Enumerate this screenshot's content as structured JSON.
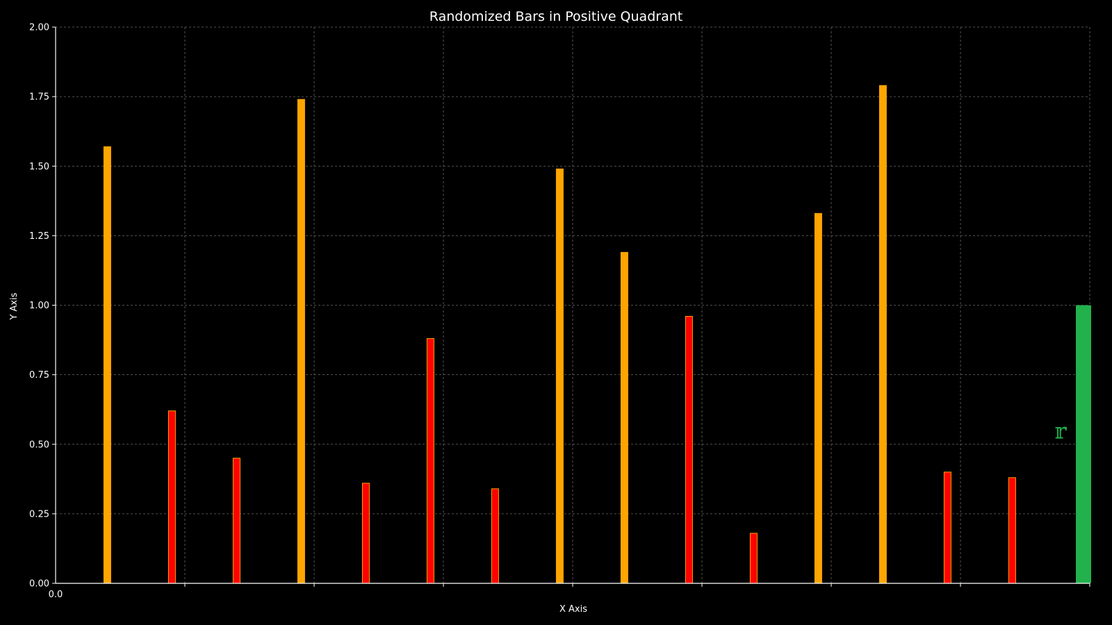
{
  "chart_data": {
    "type": "bar",
    "title": "Randomized Bars in Positive Quadrant",
    "xlabel": "X Axis",
    "ylabel": "Y Axis",
    "xlim": [
      0,
      16
    ],
    "ylim": [
      0,
      2
    ],
    "grid": true,
    "y_ticks": [
      "0.00",
      "0.25",
      "0.50",
      "0.75",
      "1.00",
      "1.25",
      "1.50",
      "1.75",
      "2.00"
    ],
    "x_tick_labels": [
      "0.0"
    ],
    "x_grid_count": 8,
    "bars": [
      {
        "x": 0.8,
        "value": 1.57,
        "color": "#ffa500"
      },
      {
        "x": 1.8,
        "value": 0.62,
        "color": "#ff0000"
      },
      {
        "x": 2.8,
        "value": 0.45,
        "color": "#ff0000"
      },
      {
        "x": 3.8,
        "value": 1.74,
        "color": "#ffa500"
      },
      {
        "x": 4.8,
        "value": 0.36,
        "color": "#ff0000"
      },
      {
        "x": 5.8,
        "value": 0.88,
        "color": "#ff0000"
      },
      {
        "x": 6.8,
        "value": 0.34,
        "color": "#ff0000"
      },
      {
        "x": 7.8,
        "value": 1.49,
        "color": "#ffa500"
      },
      {
        "x": 8.8,
        "value": 1.19,
        "color": "#ffa500"
      },
      {
        "x": 9.8,
        "value": 0.96,
        "color": "#ff0000"
      },
      {
        "x": 10.8,
        "value": 0.18,
        "color": "#ff0000"
      },
      {
        "x": 11.8,
        "value": 1.33,
        "color": "#ffa500"
      },
      {
        "x": 12.8,
        "value": 1.79,
        "color": "#ffa500"
      },
      {
        "x": 13.8,
        "value": 0.4,
        "color": "#ff0000"
      },
      {
        "x": 14.8,
        "value": 0.38,
        "color": "#ff0000"
      }
    ],
    "highlight_bar": {
      "value": 1.0,
      "color": "#22b14c"
    },
    "marker": {
      "text": "𝕣",
      "value": 0.55,
      "color": "#22b14c"
    }
  },
  "colors": {
    "background": "#000000",
    "bar_orange": "#ffa500",
    "bar_red": "#ff0000",
    "bar_edge": "#ffa500",
    "highlight": "#22b14c"
  }
}
